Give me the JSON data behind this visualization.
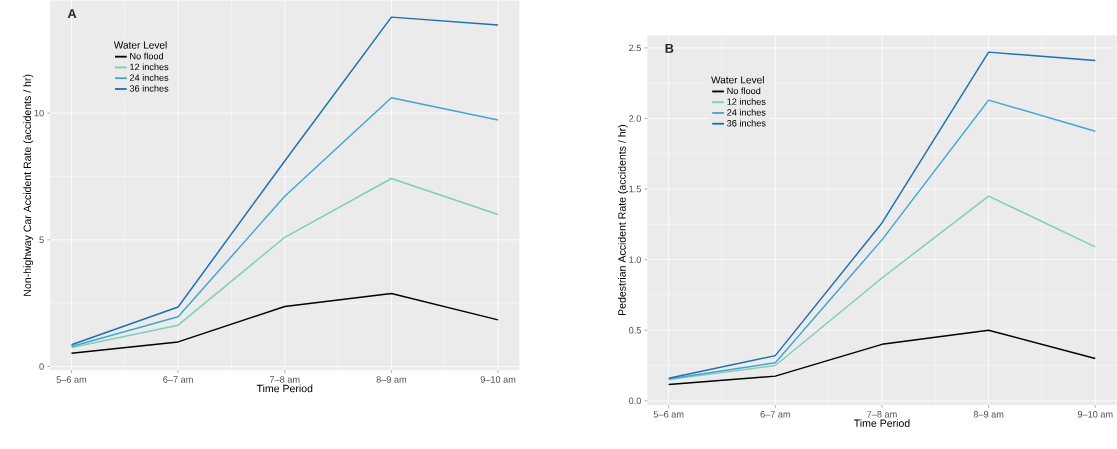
{
  "chart_data": [
    {
      "type": "line",
      "annotations": [
        "A"
      ],
      "xlabel": "Time Period",
      "ylabel": "Non-highway Car Accident Rate (accidents / hr)",
      "legend_title": "Water Level",
      "legend": "top left",
      "grid": true,
      "categories": [
        "5–6 am",
        "6–7 am",
        "7–8 am",
        "8–9 am",
        "9–10 am"
      ],
      "ylim": [
        -0.15,
        14.45
      ],
      "yticks": [
        0,
        5,
        10
      ],
      "series": [
        {
          "name": "No flood",
          "color": "#000000",
          "values": [
            0.52,
            0.97,
            2.37,
            2.88,
            1.84
          ]
        },
        {
          "name": "12 inches",
          "color": "#7fcdbb",
          "values": [
            0.75,
            1.63,
            5.1,
            7.42,
            6.0
          ]
        },
        {
          "name": "24 inches",
          "color": "#41a6d1",
          "values": [
            0.79,
            1.96,
            6.72,
            10.61,
            9.73
          ]
        },
        {
          "name": "36 inches",
          "color": "#1f6fb3",
          "values": [
            0.86,
            2.35,
            8.11,
            13.79,
            13.48
          ]
        }
      ]
    },
    {
      "type": "line",
      "annotations": [
        "B"
      ],
      "xlabel": "Time Period",
      "ylabel": "Pedestrian Accident Rate (accidents / hr)",
      "legend_title": "Water Level",
      "legend": "top left",
      "grid": true,
      "categories": [
        "5–6 am",
        "6–7 am",
        "7–8 am",
        "8–9 am",
        "9–10 am"
      ],
      "ylim": [
        -0.03,
        2.59
      ],
      "yticks": [
        {
          "value": 0,
          "label": "0.0"
        },
        {
          "value": 0.5,
          "label": "0.5"
        },
        {
          "value": 1,
          "label": "1.0"
        },
        {
          "value": 1.5,
          "label": "1.5"
        },
        {
          "value": 2,
          "label": "2.0"
        },
        {
          "value": 2.5,
          "label": "2.5"
        }
      ],
      "series": [
        {
          "name": "No flood",
          "color": "#000000",
          "values": [
            0.115,
            0.175,
            0.4,
            0.5,
            0.3
          ]
        },
        {
          "name": "12 inches",
          "color": "#7fcdbb",
          "values": [
            0.15,
            0.25,
            0.87,
            1.45,
            1.09
          ]
        },
        {
          "name": "24 inches",
          "color": "#41a6d1",
          "values": [
            0.155,
            0.27,
            1.14,
            2.13,
            1.91
          ]
        },
        {
          "name": "36 inches",
          "color": "#1f6fb3",
          "values": [
            0.16,
            0.32,
            1.26,
            2.47,
            2.41
          ]
        }
      ]
    }
  ]
}
